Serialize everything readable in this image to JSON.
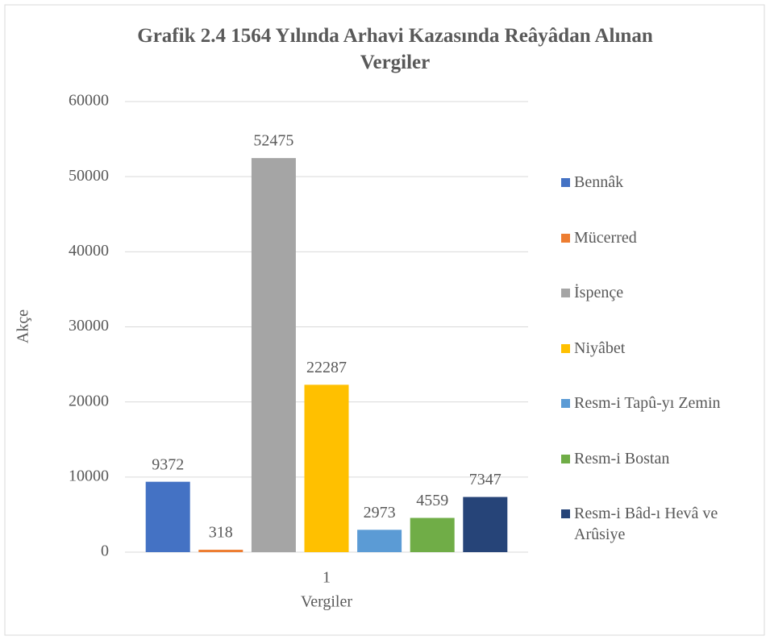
{
  "chart_data": {
    "type": "bar",
    "title": "Grafik 2.4 1564 Yılında Arhavi Kazasında Reâyâdan Alınan Vergiler",
    "x_label": "Vergiler",
    "y_label": "Akçe",
    "categories": [
      "1"
    ],
    "series": [
      {
        "name": "Bennâk",
        "color": "#4472c4",
        "values": [
          9372
        ]
      },
      {
        "name": "Mücerred",
        "color": "#ed7d31",
        "values": [
          318
        ]
      },
      {
        "name": "İspençe",
        "color": "#a5a5a5",
        "values": [
          52475
        ]
      },
      {
        "name": "Niyâbet",
        "color": "#ffc000",
        "values": [
          22287
        ]
      },
      {
        "name": "Resm-i Tapû-yı Zemin",
        "color": "#5b9bd5",
        "values": [
          2973
        ]
      },
      {
        "name": "Resm-i Bostan",
        "color": "#70ad47",
        "values": [
          4559
        ]
      },
      {
        "name": "Resm-i Bâd-ı Hevâ ve Arûsiye",
        "color": "#264478",
        "values": [
          7347
        ]
      }
    ],
    "ylim": [
      0,
      60000
    ],
    "yticks": [
      0,
      10000,
      20000,
      30000,
      40000,
      50000,
      60000
    ],
    "grid": true,
    "legend": "right"
  }
}
